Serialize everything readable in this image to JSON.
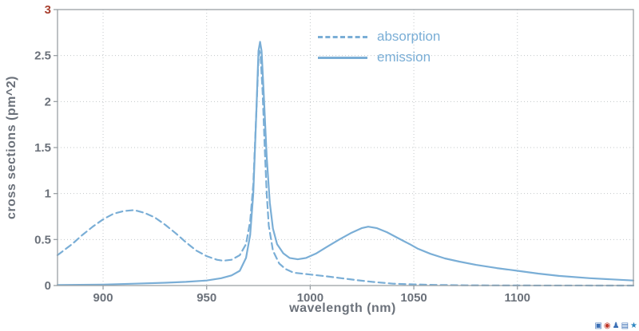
{
  "chart_data": {
    "type": "line",
    "title": "",
    "xlabel": "wavelength (nm)",
    "ylabel": "cross sections (pm^2)",
    "xlim": [
      878,
      1156
    ],
    "ylim": [
      0,
      3
    ],
    "x_ticks": [
      900,
      950,
      1000,
      1050,
      1100
    ],
    "y_ticks": [
      0,
      0.5,
      1,
      1.5,
      2,
      2.5,
      3
    ],
    "grid": true,
    "legend_position": "top-center",
    "colors": {
      "line": "#7aaed6",
      "tick_label": "#6b717a",
      "axis_label": "#6b717a",
      "frame": "#9aa0a5",
      "grid": "#c3c7ca",
      "top_tick_label": "#a8402f"
    },
    "series": [
      {
        "name": "absorption",
        "style": "dashed",
        "color": "#7aaed6",
        "points": [
          [
            878,
            0.33
          ],
          [
            885,
            0.45
          ],
          [
            890,
            0.55
          ],
          [
            895,
            0.64
          ],
          [
            900,
            0.72
          ],
          [
            905,
            0.78
          ],
          [
            910,
            0.81
          ],
          [
            915,
            0.82
          ],
          [
            920,
            0.79
          ],
          [
            925,
            0.74
          ],
          [
            930,
            0.66
          ],
          [
            935,
            0.57
          ],
          [
            940,
            0.47
          ],
          [
            945,
            0.38
          ],
          [
            950,
            0.32
          ],
          [
            955,
            0.28
          ],
          [
            958,
            0.27
          ],
          [
            962,
            0.28
          ],
          [
            966,
            0.33
          ],
          [
            969,
            0.45
          ],
          [
            971,
            0.7
          ],
          [
            972.5,
            1.1
          ],
          [
            974,
            1.9
          ],
          [
            975,
            2.45
          ],
          [
            975.5,
            2.55
          ],
          [
            976,
            2.5
          ],
          [
            977,
            2.1
          ],
          [
            978,
            1.5
          ],
          [
            979,
            1.0
          ],
          [
            980,
            0.65
          ],
          [
            982,
            0.38
          ],
          [
            985,
            0.24
          ],
          [
            988,
            0.18
          ],
          [
            992,
            0.14
          ],
          [
            1000,
            0.12
          ],
          [
            1008,
            0.1
          ],
          [
            1015,
            0.08
          ],
          [
            1022,
            0.06
          ],
          [
            1030,
            0.04
          ],
          [
            1040,
            0.02
          ],
          [
            1050,
            0.012
          ],
          [
            1060,
            0.007
          ],
          [
            1075,
            0.003
          ],
          [
            1100,
            0.001
          ],
          [
            1156,
            0.0
          ]
        ]
      },
      {
        "name": "emission",
        "style": "solid",
        "color": "#7aaed6",
        "points": [
          [
            878,
            0.005
          ],
          [
            900,
            0.01
          ],
          [
            915,
            0.02
          ],
          [
            930,
            0.03
          ],
          [
            940,
            0.04
          ],
          [
            950,
            0.055
          ],
          [
            957,
            0.08
          ],
          [
            962,
            0.11
          ],
          [
            966,
            0.16
          ],
          [
            969,
            0.3
          ],
          [
            971,
            0.55
          ],
          [
            972.5,
            1.0
          ],
          [
            974,
            1.9
          ],
          [
            975,
            2.55
          ],
          [
            975.8,
            2.65
          ],
          [
            976.5,
            2.55
          ],
          [
            977.5,
            2.1
          ],
          [
            979,
            1.4
          ],
          [
            980.5,
            0.9
          ],
          [
            982,
            0.62
          ],
          [
            984,
            0.45
          ],
          [
            987,
            0.35
          ],
          [
            990,
            0.3
          ],
          [
            994,
            0.285
          ],
          [
            998,
            0.3
          ],
          [
            1003,
            0.35
          ],
          [
            1008,
            0.42
          ],
          [
            1014,
            0.5
          ],
          [
            1020,
            0.575
          ],
          [
            1025,
            0.625
          ],
          [
            1028,
            0.64
          ],
          [
            1032,
            0.625
          ],
          [
            1037,
            0.58
          ],
          [
            1042,
            0.52
          ],
          [
            1048,
            0.45
          ],
          [
            1052,
            0.4
          ],
          [
            1058,
            0.345
          ],
          [
            1065,
            0.295
          ],
          [
            1072,
            0.26
          ],
          [
            1080,
            0.225
          ],
          [
            1090,
            0.19
          ],
          [
            1100,
            0.16
          ],
          [
            1110,
            0.13
          ],
          [
            1120,
            0.105
          ],
          [
            1135,
            0.08
          ],
          [
            1156,
            0.055
          ]
        ]
      }
    ]
  },
  "corner_icons": [
    {
      "name": "window-icon",
      "glyph": "▣",
      "color": "#3b6fb5"
    },
    {
      "name": "record-icon",
      "glyph": "◉",
      "color": "#c0392b"
    },
    {
      "name": "person-icon",
      "glyph": "♟",
      "color": "#3b6fb5"
    },
    {
      "name": "grid-icon",
      "glyph": "▤",
      "color": "#3b6fb5"
    },
    {
      "name": "star-icon",
      "glyph": "★",
      "color": "#2e86c1"
    }
  ]
}
